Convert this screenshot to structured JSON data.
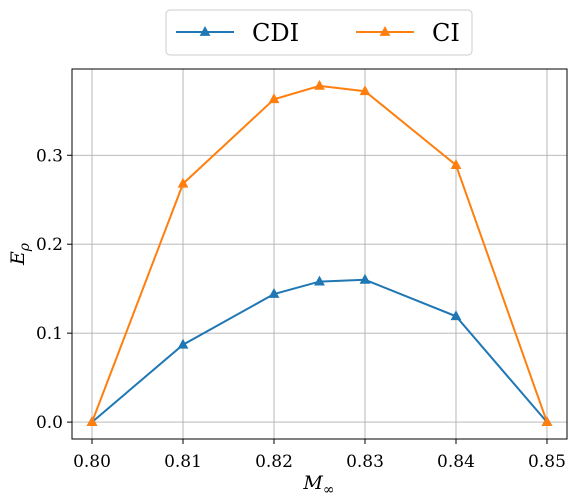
{
  "chart_data": {
    "type": "line",
    "x": [
      0.8,
      0.81,
      0.82,
      0.825,
      0.83,
      0.84,
      0.85
    ],
    "x_tick_labels": [
      "0.80",
      "0.81",
      "0.82",
      "0.83",
      "0.84",
      "0.85"
    ],
    "x_ticks": [
      0.8,
      0.81,
      0.82,
      0.83,
      0.84,
      0.85
    ],
    "y_tick_labels": [
      "0.0",
      "0.1",
      "0.2",
      "0.3"
    ],
    "y_ticks": [
      0.0,
      0.1,
      0.2,
      0.3
    ],
    "xlim": [
      0.7978,
      0.8522
    ],
    "ylim": [
      -0.019,
      0.397
    ],
    "xlabel": "M∞",
    "ylabel": "Eρ",
    "grid": true,
    "legend_position": "top-center, above plot",
    "series": [
      {
        "name": "CDI",
        "color": "#1f77b4",
        "marker": "triangle-up",
        "values": [
          0.0,
          0.087,
          0.144,
          0.158,
          0.16,
          0.119,
          0.0
        ]
      },
      {
        "name": "CI",
        "color": "#ff7f0e",
        "marker": "triangle-up",
        "values": [
          0.0,
          0.268,
          0.363,
          0.378,
          0.372,
          0.289,
          0.0
        ]
      }
    ]
  }
}
